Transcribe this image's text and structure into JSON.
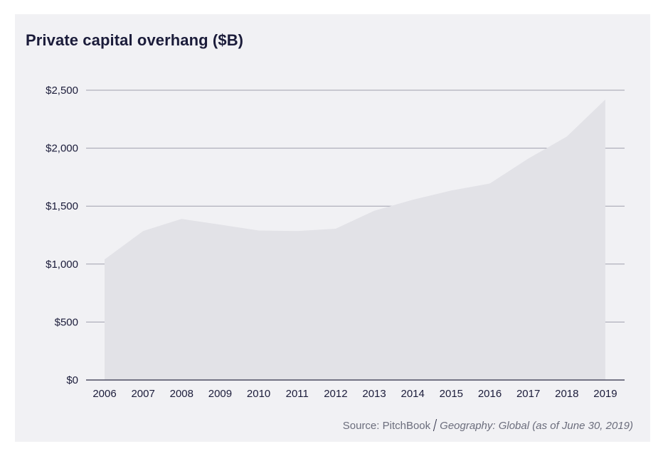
{
  "chart_data": {
    "type": "area",
    "title": "Private capital overhang ($B)",
    "x": [
      "2006",
      "2007",
      "2008",
      "2009",
      "2010",
      "2011",
      "2012",
      "2013",
      "2014",
      "2015",
      "2016",
      "2017",
      "2018",
      "2019"
    ],
    "series": [
      {
        "values": [
          1040,
          1285,
          1390,
          1340,
          1290,
          1285,
          1305,
          1460,
          1555,
          1635,
          1695,
          1910,
          2100,
          2420
        ]
      }
    ],
    "yticks": [
      "$0",
      "$500",
      "$1,000",
      "$1,500",
      "$2,000",
      "$2,500"
    ],
    "ytick_values": [
      0,
      500,
      1000,
      1500,
      2000,
      2500
    ],
    "ylim": [
      0,
      2500
    ],
    "grid": true,
    "colors": {
      "area": "#e2e2e7",
      "grid": "#9fa0ad",
      "axis": "#2c2d45",
      "text": "#1b1c3a"
    }
  },
  "footer": {
    "source": "Source: PitchBook",
    "geography": "Geography: Global (as of June 30, 2019)"
  }
}
